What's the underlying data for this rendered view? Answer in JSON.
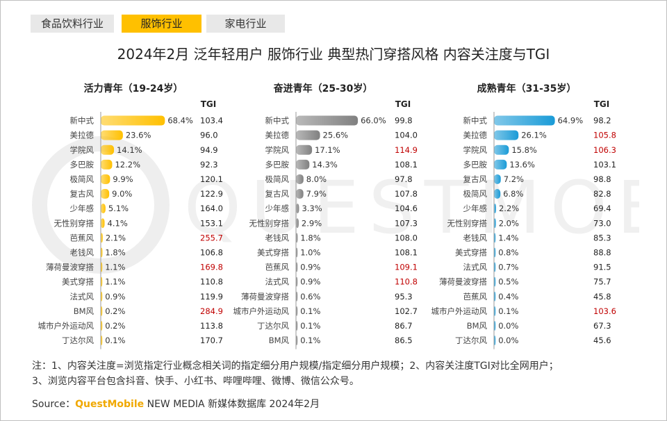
{
  "tabs": [
    {
      "label": "食品饮料行业",
      "active": false
    },
    {
      "label": "服饰行业",
      "active": true
    },
    {
      "label": "家电行业",
      "active": false
    }
  ],
  "title": "2024年2月 泛年轻用户 服饰行业 典型热门穿搭风格 内容关注度与TGI",
  "watermark": "QUESTMOBILE",
  "chart_data": [
    {
      "type": "bar",
      "title": "活力青年（19-24岁）",
      "tgi_header": "TGI",
      "color": "#ffc000",
      "highlight_color": "#c00000",
      "categories": [
        "新中式",
        "美拉德",
        "学院风",
        "多巴胺",
        "极简风",
        "复古风",
        "少年感",
        "无性别穿搭",
        "芭蕉风",
        "老钱风",
        "薄荷曼波穿搭",
        "美式穿搭",
        "法式风",
        "BM风",
        "城市户外运动风",
        "丁达尔风"
      ],
      "values": [
        68.4,
        23.6,
        14.1,
        12.2,
        9.9,
        9.0,
        5.1,
        4.1,
        2.1,
        1.8,
        1.1,
        1.1,
        0.9,
        0.2,
        0.2,
        0.1
      ],
      "tgi": [
        103.4,
        96.0,
        94.9,
        92.3,
        120.1,
        122.9,
        164.0,
        153.1,
        255.7,
        106.8,
        169.8,
        110.8,
        119.9,
        284.9,
        113.8,
        170.7
      ],
      "tgi_highlight": [
        false,
        false,
        false,
        false,
        false,
        false,
        false,
        false,
        true,
        false,
        true,
        false,
        false,
        true,
        false,
        false
      ]
    },
    {
      "type": "bar",
      "title": "奋进青年（25-30岁）",
      "tgi_header": "TGI",
      "color": "#808080",
      "highlight_color": "#c00000",
      "categories": [
        "新中式",
        "美拉德",
        "学院风",
        "多巴胺",
        "极简风",
        "复古风",
        "少年感",
        "无性别穿搭",
        "老钱风",
        "美式穿搭",
        "芭蕉风",
        "法式风",
        "薄荷曼波穿搭",
        "城市户外运动风",
        "丁达尔风",
        "BM风"
      ],
      "values": [
        66.0,
        25.6,
        17.1,
        14.3,
        8.0,
        7.9,
        3.3,
        2.9,
        1.8,
        1.0,
        0.9,
        0.9,
        0.6,
        0.1,
        0.1,
        0.1
      ],
      "tgi": [
        99.8,
        104.0,
        114.9,
        108.1,
        97.8,
        107.8,
        104.6,
        107.3,
        108.0,
        108.1,
        109.1,
        110.8,
        95.3,
        102.7,
        86.7,
        86.5
      ],
      "tgi_highlight": [
        false,
        false,
        true,
        false,
        false,
        false,
        false,
        false,
        false,
        false,
        true,
        true,
        false,
        false,
        false,
        false
      ]
    },
    {
      "type": "bar",
      "title": "成熟青年（31-35岁）",
      "tgi_header": "TGI",
      "color": "#1a9bd7",
      "highlight_color": "#c00000",
      "categories": [
        "新中式",
        "美拉德",
        "学院风",
        "多巴胺",
        "复古风",
        "极简风",
        "少年感",
        "无性别穿搭",
        "老钱风",
        "美式穿搭",
        "法式风",
        "薄荷曼波穿搭",
        "芭蕉风",
        "城市户外运动风",
        "BM风",
        "丁达尔风"
      ],
      "values": [
        64.9,
        26.1,
        15.8,
        13.6,
        7.2,
        6.8,
        2.2,
        2.0,
        1.4,
        0.8,
        0.7,
        0.5,
        0.4,
        0.1,
        0.0,
        0.0
      ],
      "tgi": [
        98.2,
        105.8,
        106.3,
        103.1,
        98.8,
        82.8,
        69.4,
        73.0,
        85.3,
        88.8,
        91.5,
        75.7,
        45.8,
        103.6,
        67.3,
        45.6
      ],
      "tgi_highlight": [
        false,
        true,
        true,
        false,
        false,
        false,
        false,
        false,
        false,
        false,
        false,
        false,
        false,
        true,
        false,
        false
      ]
    }
  ],
  "notes": [
    "注：1、内容关注度=浏览指定行业概念相关词的指定细分用户规模/指定细分用户规模；2、内容关注度TGI对比全网用户；",
    "3、浏览内容平台包含抖音、快手、小红书、哔哩哔哩、微博、微信公众号。"
  ],
  "source": {
    "prefix": "Source：",
    "brand": "QuestMobile",
    "suffix": " NEW MEDIA  新媒体数据库 2024年2月"
  }
}
